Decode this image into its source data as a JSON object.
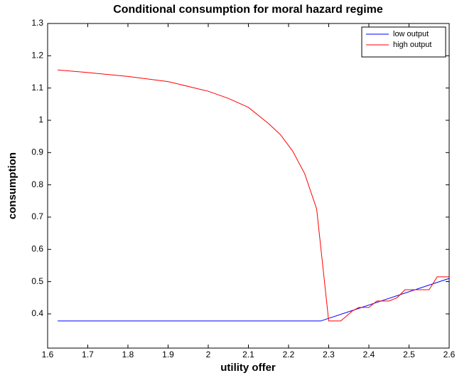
{
  "chart_data": {
    "type": "line",
    "title": "Conditional consumption for moral hazard regime",
    "xlabel": "utility offer",
    "ylabel": "consumption",
    "xlim": [
      1.6,
      2.6
    ],
    "ylim": [
      0.294,
      1.3
    ],
    "xticks": [
      1.6,
      1.7,
      1.8,
      1.9,
      2,
      2.1,
      2.2,
      2.3,
      2.4,
      2.5,
      2.6
    ],
    "yticks": [
      0.4,
      0.5,
      0.6,
      0.7,
      0.8,
      0.9,
      1,
      1.1,
      1.2,
      1.3
    ],
    "grid": false,
    "legend": "top-right",
    "series": [
      {
        "name": "low output",
        "color": "#0000ff",
        "x": [
          1.625,
          2.28,
          2.6
        ],
        "values": [
          0.378,
          0.378,
          0.51
        ]
      },
      {
        "name": "high output",
        "color": "#ff0000",
        "x": [
          1.625,
          1.7,
          1.8,
          1.9,
          2.0,
          2.05,
          2.1,
          2.15,
          2.18,
          2.21,
          2.24,
          2.27,
          2.3,
          2.33,
          2.36,
          2.375,
          2.4,
          2.42,
          2.45,
          2.47,
          2.49,
          2.53,
          2.55,
          2.57,
          2.6
        ],
        "values": [
          1.156,
          1.148,
          1.136,
          1.12,
          1.09,
          1.068,
          1.04,
          0.99,
          0.955,
          0.905,
          0.835,
          0.725,
          0.378,
          0.378,
          0.41,
          0.42,
          0.42,
          0.44,
          0.44,
          0.45,
          0.475,
          0.475,
          0.475,
          0.515,
          0.515
        ]
      }
    ]
  }
}
